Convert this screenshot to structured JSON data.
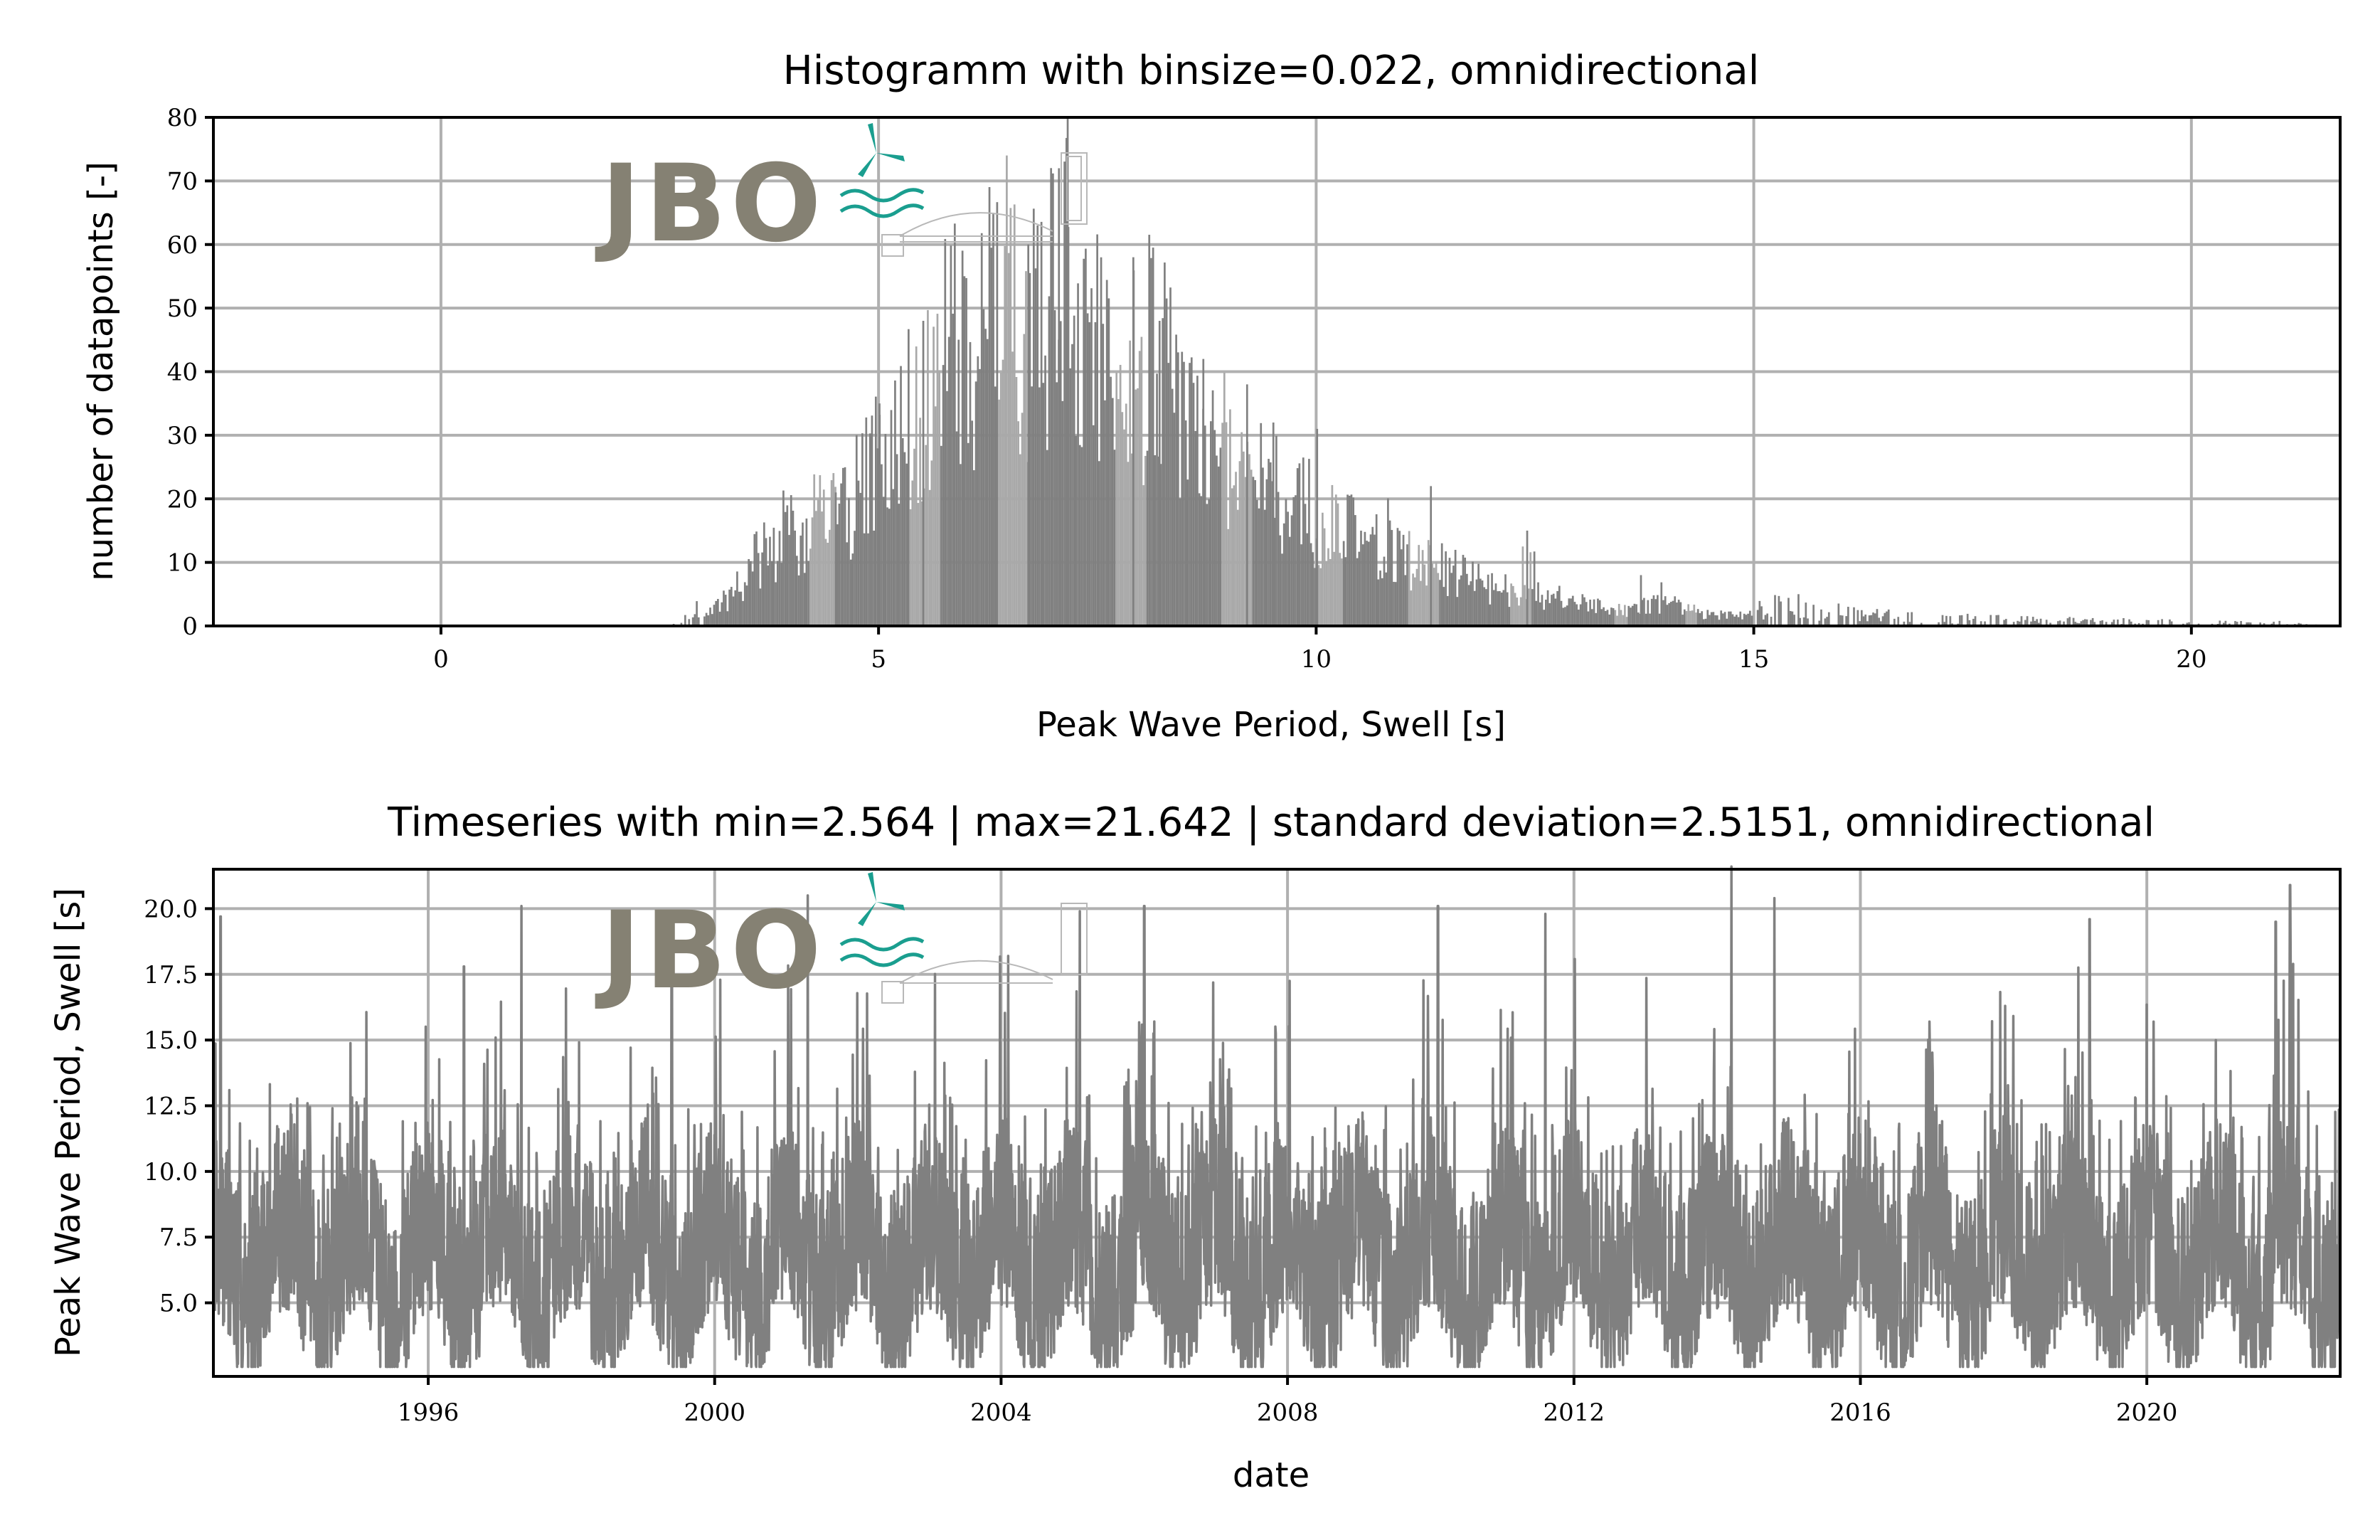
{
  "colors": {
    "bar_dark": "#808080",
    "bar_light": "#a9a9a9",
    "line": "#808080",
    "grid": "#b0b0b0",
    "logo_gray": "#858173",
    "logo_teal": "#1a9e8f"
  },
  "logo": {
    "text": "JBO",
    "icon": "wind-turbine-wave-bridge-logo"
  },
  "chart_data": [
    {
      "type": "bar",
      "title": "Histogramm with binsize=0.022, omnidirectional",
      "xlabel": "Peak Wave Period, Swell [s]",
      "ylabel": "number of datapoints [-]",
      "xlim": [
        -2.6,
        21.7
      ],
      "ylim": [
        0,
        80
      ],
      "xticks": [
        "0",
        "5",
        "10",
        "15",
        "20"
      ],
      "yticks": [
        "0",
        "10",
        "20",
        "30",
        "40",
        "50",
        "60",
        "70",
        "80"
      ],
      "binsize": 0.022,
      "grid": true,
      "envelope": [
        [
          2.56,
          0
        ],
        [
          2.8,
          1
        ],
        [
          3.0,
          2
        ],
        [
          3.3,
          5
        ],
        [
          3.6,
          12
        ],
        [
          4.0,
          16
        ],
        [
          4.4,
          20
        ],
        [
          4.8,
          24
        ],
        [
          5.0,
          30
        ],
        [
          5.4,
          38
        ],
        [
          5.8,
          48
        ],
        [
          6.2,
          52
        ],
        [
          6.5,
          58
        ],
        [
          6.8,
          50
        ],
        [
          7.1,
          66
        ],
        [
          7.4,
          52
        ],
        [
          7.8,
          44
        ],
        [
          8.1,
          50
        ],
        [
          8.5,
          36
        ],
        [
          8.9,
          34
        ],
        [
          9.3,
          26
        ],
        [
          9.8,
          22
        ],
        [
          10.2,
          18
        ],
        [
          10.6,
          14
        ],
        [
          11.0,
          12
        ],
        [
          11.5,
          10
        ],
        [
          12.0,
          7
        ],
        [
          12.5,
          6
        ],
        [
          13.0,
          4
        ],
        [
          13.5,
          3
        ],
        [
          14.0,
          4
        ],
        [
          14.5,
          2
        ],
        [
          15.0,
          2
        ],
        [
          16.0,
          1.3
        ],
        [
          17.0,
          0.8
        ],
        [
          18.0,
          0.6
        ],
        [
          19.0,
          0.5
        ],
        [
          20.0,
          0.4
        ],
        [
          21.0,
          0.3
        ],
        [
          21.64,
          0
        ]
      ],
      "spikes": [
        [
          4.5,
          21
        ],
        [
          5.0,
          35
        ],
        [
          5.5,
          48
        ],
        [
          6.3,
          65
        ],
        [
          6.7,
          60
        ],
        [
          7.05,
          72
        ],
        [
          7.15,
          80
        ],
        [
          7.9,
          58
        ],
        [
          8.2,
          48
        ],
        [
          8.7,
          42
        ],
        [
          9.2,
          38
        ],
        [
          9.5,
          32
        ],
        [
          10.0,
          31
        ],
        [
          11.3,
          22
        ],
        [
          12.4,
          15
        ],
        [
          13.7,
          8
        ],
        [
          15.5,
          5
        ]
      ],
      "light_bands": [
        [
          4.2,
          4.5
        ],
        [
          5.35,
          5.7
        ],
        [
          6.35,
          6.7
        ],
        [
          7.7,
          8.05
        ],
        [
          8.9,
          9.25
        ],
        [
          10.0,
          10.3
        ],
        [
          11.05,
          11.4
        ],
        [
          12.2,
          12.45
        ],
        [
          13.4,
          13.55
        ],
        [
          14.2,
          14.35
        ]
      ]
    },
    {
      "type": "line",
      "title": "Timeseries with min=2.564 | max=21.642 | standard deviation=2.5151, omnidirectional",
      "xlabel": "date",
      "ylabel": "Peak Wave Period, Swell [s]",
      "xlim": [
        1993.0,
        2022.7
      ],
      "ylim": [
        2.2,
        21.5
      ],
      "xticks": [
        "1996",
        "2000",
        "2004",
        "2008",
        "2012",
        "2016",
        "2020"
      ],
      "yticks": [
        "5.0",
        "7.5",
        "10.0",
        "12.5",
        "15.0",
        "17.5",
        "20.0"
      ],
      "min": 2.564,
      "max": 21.642,
      "std": 2.5151,
      "grid": true,
      "notable_peaks": [
        [
          1993.1,
          19.7
        ],
        [
          1996.5,
          17.8
        ],
        [
          1997.3,
          20.1
        ],
        [
          1999.4,
          19.0
        ],
        [
          2001.3,
          20.5
        ],
        [
          2004.1,
          18.2
        ],
        [
          2005.1,
          19.9
        ],
        [
          2006.0,
          20.1
        ],
        [
          2010.1,
          20.1
        ],
        [
          2011.6,
          19.8
        ],
        [
          2014.2,
          21.6
        ],
        [
          2014.8,
          20.4
        ],
        [
          2019.2,
          19.6
        ],
        [
          2022.0,
          20.9
        ],
        [
          2021.8,
          19.5
        ]
      ]
    }
  ]
}
